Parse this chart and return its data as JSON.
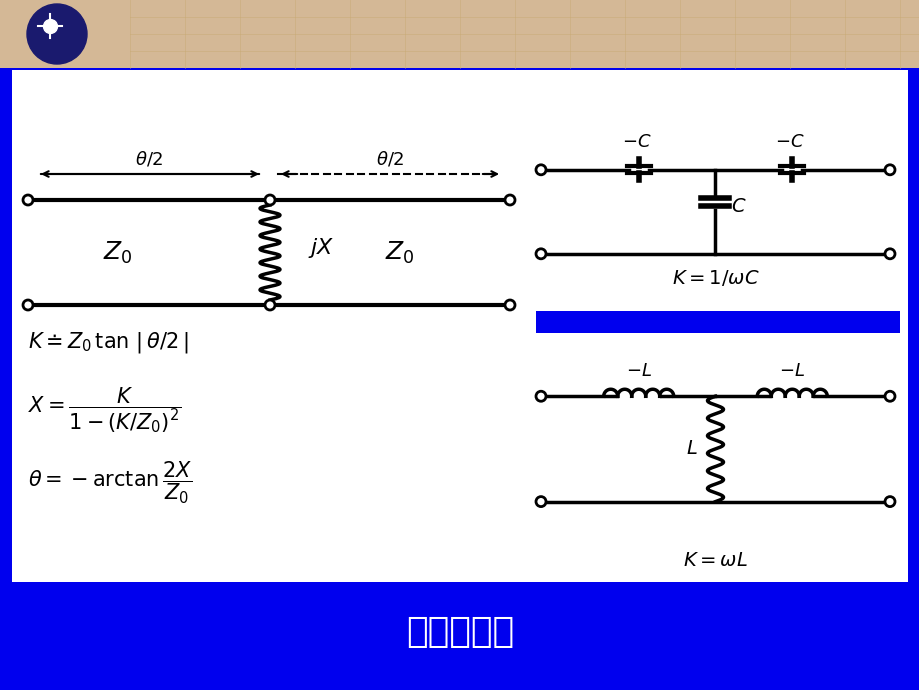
{
  "bg_color": "#0000EE",
  "header_color": "#D4B896",
  "title_text": "阻抗变换器",
  "title_color": "#FFFFFF",
  "title_fontsize": 26,
  "globe_color": "#1a1a6e"
}
